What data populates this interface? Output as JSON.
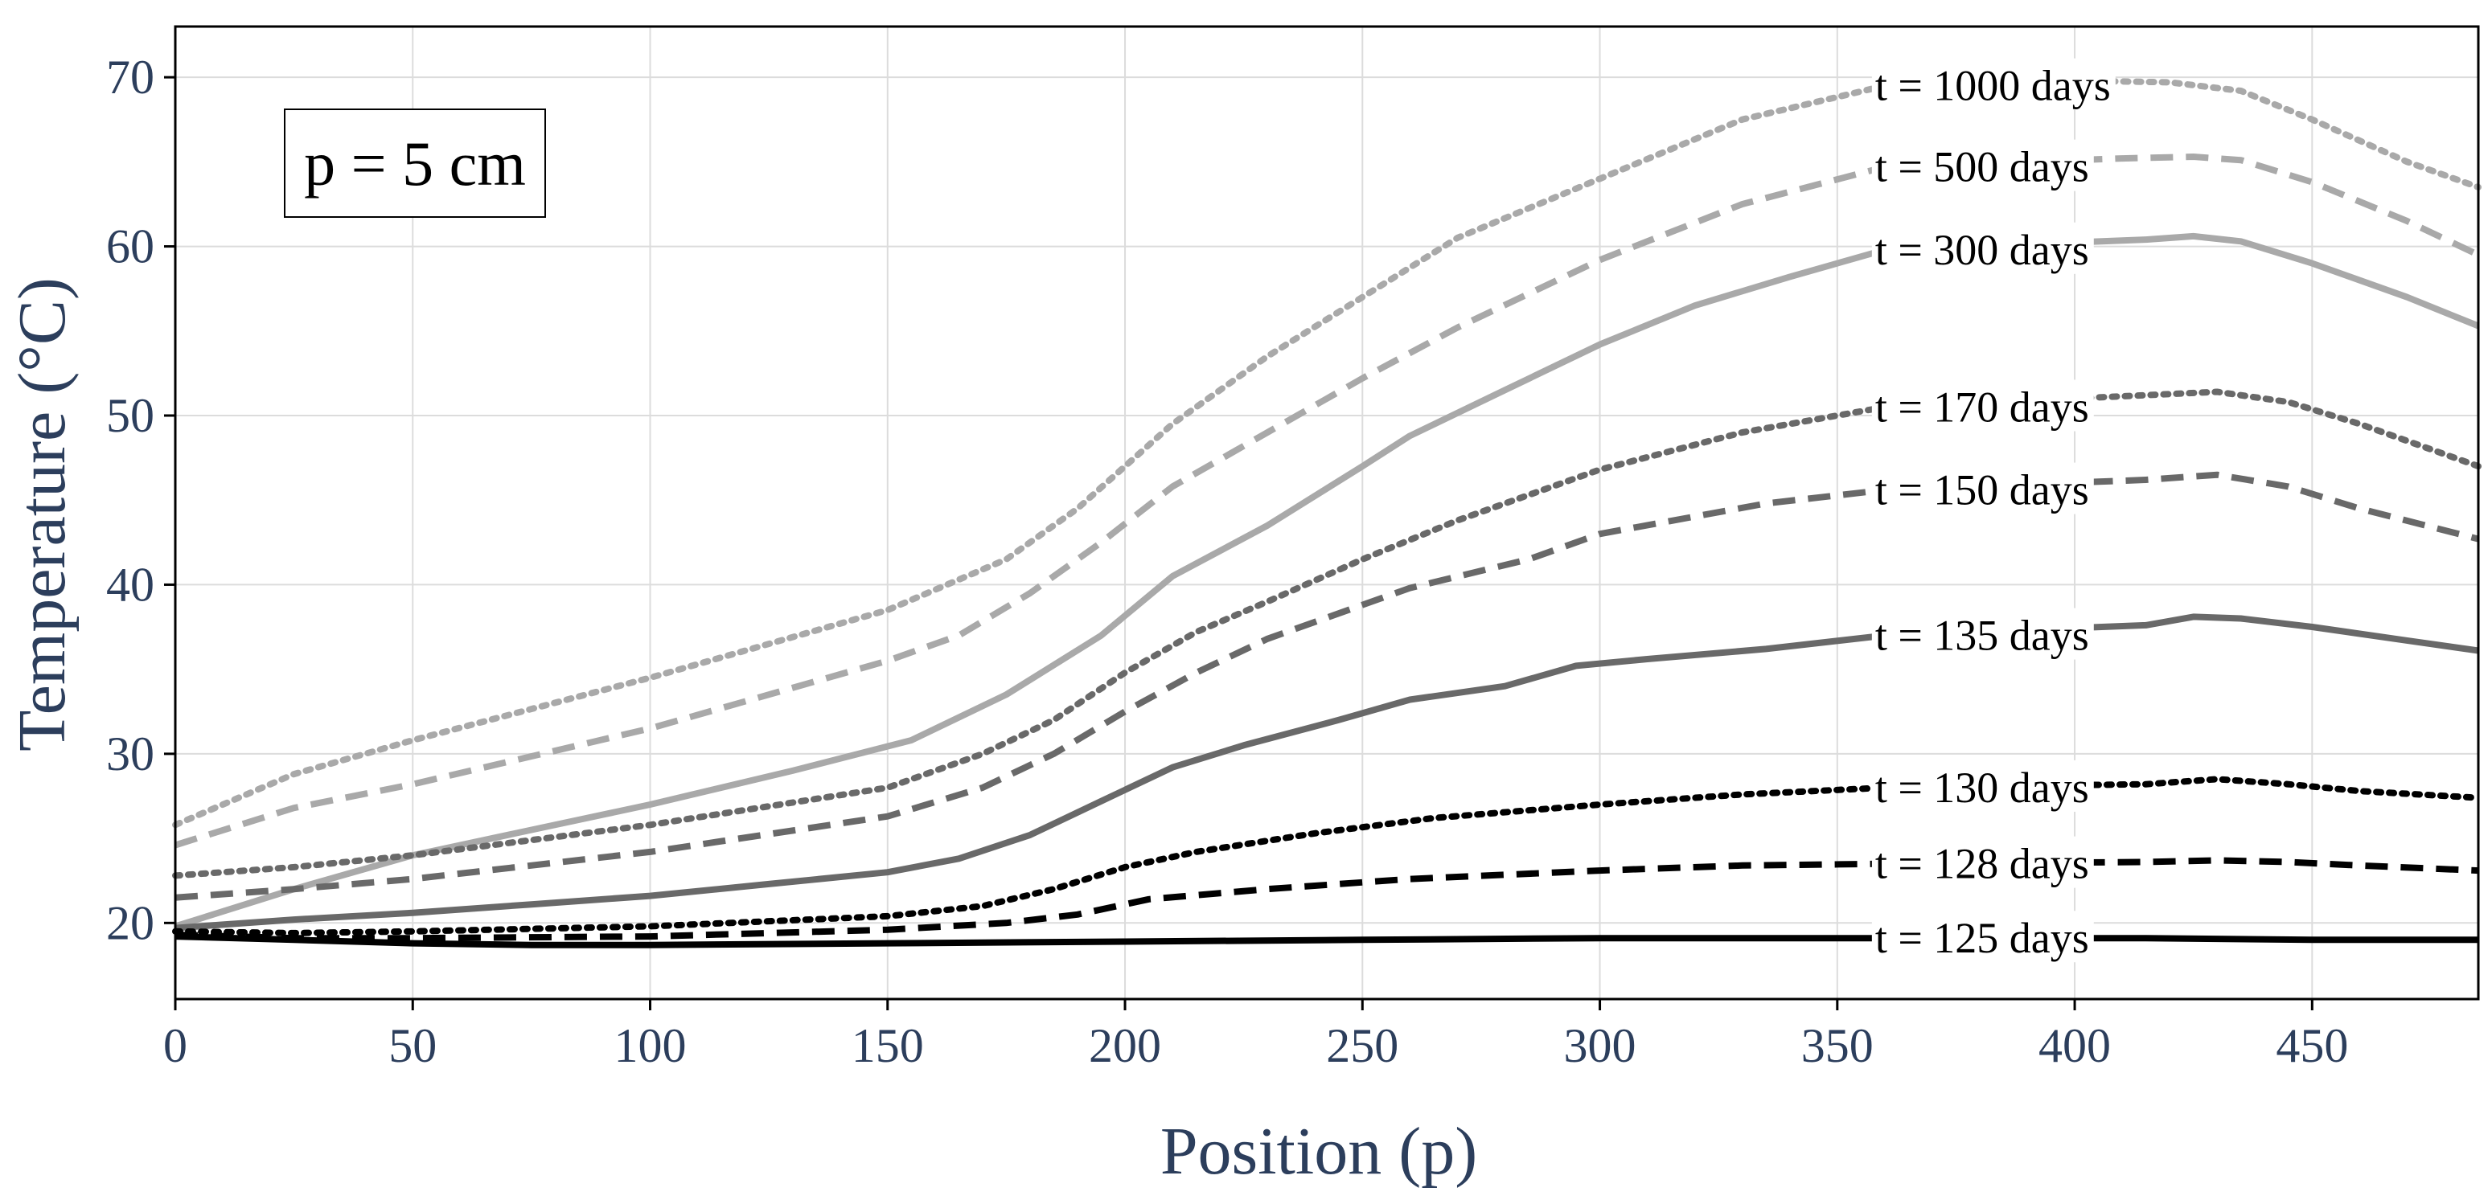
{
  "chart_data": {
    "type": "line",
    "title": "",
    "xlabel": "Position (p)",
    "ylabel": "Temperature (°C)",
    "xlim": [
      0,
      485
    ],
    "ylim": [
      15.5,
      73
    ],
    "xticks": [
      0,
      50,
      100,
      150,
      200,
      250,
      300,
      350,
      400,
      450
    ],
    "yticks": [
      20,
      30,
      40,
      50,
      60,
      70
    ],
    "grid": true,
    "annotation": "p = 5 cm",
    "series": [
      {
        "name": "t = 1000 days",
        "color": "#a9a9a9",
        "dash": "dotted",
        "label_at": 360,
        "x": [
          0,
          25,
          50,
          100,
          150,
          175,
          190,
          210,
          230,
          250,
          270,
          300,
          330,
          360,
          400,
          420,
          435,
          450,
          470,
          485
        ],
        "y": [
          25.8,
          28.8,
          30.8,
          34.5,
          38.5,
          41.5,
          44.5,
          49.5,
          53.5,
          57,
          60.5,
          64,
          67.5,
          69.5,
          69.8,
          69.7,
          69.2,
          67.5,
          65,
          63.5
        ]
      },
      {
        "name": "t = 500 days",
        "color": "#a9a9a9",
        "dash": "dashed",
        "label_at": 360,
        "x": [
          0,
          25,
          50,
          100,
          150,
          165,
          180,
          195,
          210,
          230,
          250,
          270,
          300,
          330,
          360,
          410,
          425,
          435,
          450,
          470,
          485
        ],
        "y": [
          24.6,
          26.8,
          28.2,
          31.5,
          35.5,
          37,
          39.5,
          42.5,
          45.8,
          49,
          52.2,
          55.2,
          59.2,
          62.5,
          64.7,
          65.2,
          65.3,
          65.1,
          63.8,
          61.5,
          59.5
        ]
      },
      {
        "name": "t = 300 days",
        "color": "#a9a9a9",
        "dash": "solid",
        "label_at": 360,
        "x": [
          0,
          25,
          50,
          100,
          130,
          155,
          175,
          195,
          210,
          230,
          250,
          260,
          280,
          300,
          320,
          340,
          360,
          415,
          425,
          435,
          450,
          470,
          485
        ],
        "y": [
          19.8,
          22,
          24,
          27,
          29,
          30.8,
          33.5,
          37,
          40.5,
          43.5,
          47,
          48.8,
          51.5,
          54.2,
          56.5,
          58.2,
          59.8,
          60.4,
          60.6,
          60.3,
          59,
          57,
          55.3
        ]
      },
      {
        "name": "t = 170 days",
        "color": "#696969",
        "dash": "dotted",
        "label_at": 360,
        "x": [
          0,
          25,
          50,
          100,
          150,
          170,
          185,
          200,
          215,
          230,
          250,
          270,
          300,
          330,
          360,
          415,
          430,
          445,
          460,
          485
        ],
        "y": [
          22.8,
          23.3,
          24,
          25.8,
          28,
          30,
          32,
          34.8,
          37.2,
          39,
          41.5,
          43.8,
          46.8,
          49,
          50.5,
          51.2,
          51.4,
          50.8,
          49.5,
          47
        ]
      },
      {
        "name": "t = 150 days",
        "color": "#696969",
        "dash": "dashed",
        "label_at": 360,
        "x": [
          0,
          25,
          50,
          100,
          150,
          170,
          185,
          200,
          215,
          230,
          260,
          285,
          300,
          335,
          360,
          415,
          430,
          445,
          460,
          485
        ],
        "y": [
          21.5,
          22,
          22.6,
          24.2,
          26.3,
          28,
          30,
          32.5,
          34.8,
          36.8,
          39.8,
          41.5,
          43,
          44.8,
          45.6,
          46.2,
          46.5,
          45.8,
          44.5,
          42.7
        ]
      },
      {
        "name": "t = 135 days",
        "color": "#696969",
        "dash": "solid",
        "label_at": 360,
        "x": [
          0,
          25,
          50,
          75,
          100,
          125,
          150,
          165,
          180,
          195,
          210,
          225,
          245,
          260,
          280,
          295,
          310,
          335,
          360,
          415,
          425,
          435,
          450,
          470,
          485
        ],
        "y": [
          19.7,
          20.2,
          20.6,
          21.1,
          21.6,
          22.3,
          23,
          23.8,
          25.2,
          27.2,
          29.2,
          30.5,
          32,
          33.2,
          34,
          35.2,
          35.6,
          36.2,
          37,
          37.6,
          38.1,
          38,
          37.5,
          36.7,
          36.1
        ]
      },
      {
        "name": "t = 130 days",
        "color": "#000000",
        "dash": "dotted",
        "label_at": 360,
        "x": [
          0,
          25,
          50,
          100,
          150,
          170,
          185,
          200,
          215,
          240,
          265,
          300,
          330,
          360,
          415,
          430,
          445,
          460,
          485
        ],
        "y": [
          19.5,
          19.4,
          19.5,
          19.8,
          20.4,
          21,
          22,
          23.3,
          24.2,
          25.3,
          26.2,
          27,
          27.6,
          28,
          28.2,
          28.5,
          28.2,
          27.8,
          27.4
        ]
      },
      {
        "name": "t = 128 days",
        "color": "#000000",
        "dash": "dashed",
        "label_at": 360,
        "x": [
          0,
          25,
          50,
          100,
          150,
          175,
          190,
          205,
          230,
          260,
          300,
          330,
          360,
          415,
          430,
          445,
          460,
          485
        ],
        "y": [
          19.3,
          19.1,
          19.1,
          19.2,
          19.6,
          20,
          20.5,
          21.4,
          22,
          22.6,
          23.1,
          23.4,
          23.5,
          23.6,
          23.7,
          23.6,
          23.4,
          23.1
        ]
      },
      {
        "name": "t = 125 days",
        "color": "#000000",
        "dash": "solid",
        "label_at": 360,
        "x": [
          0,
          25,
          50,
          75,
          100,
          150,
          200,
          250,
          300,
          360,
          415,
          450,
          485
        ],
        "y": [
          19.2,
          19,
          18.8,
          18.7,
          18.7,
          18.8,
          18.9,
          19,
          19.1,
          19.1,
          19.1,
          19,
          19
        ]
      }
    ]
  }
}
